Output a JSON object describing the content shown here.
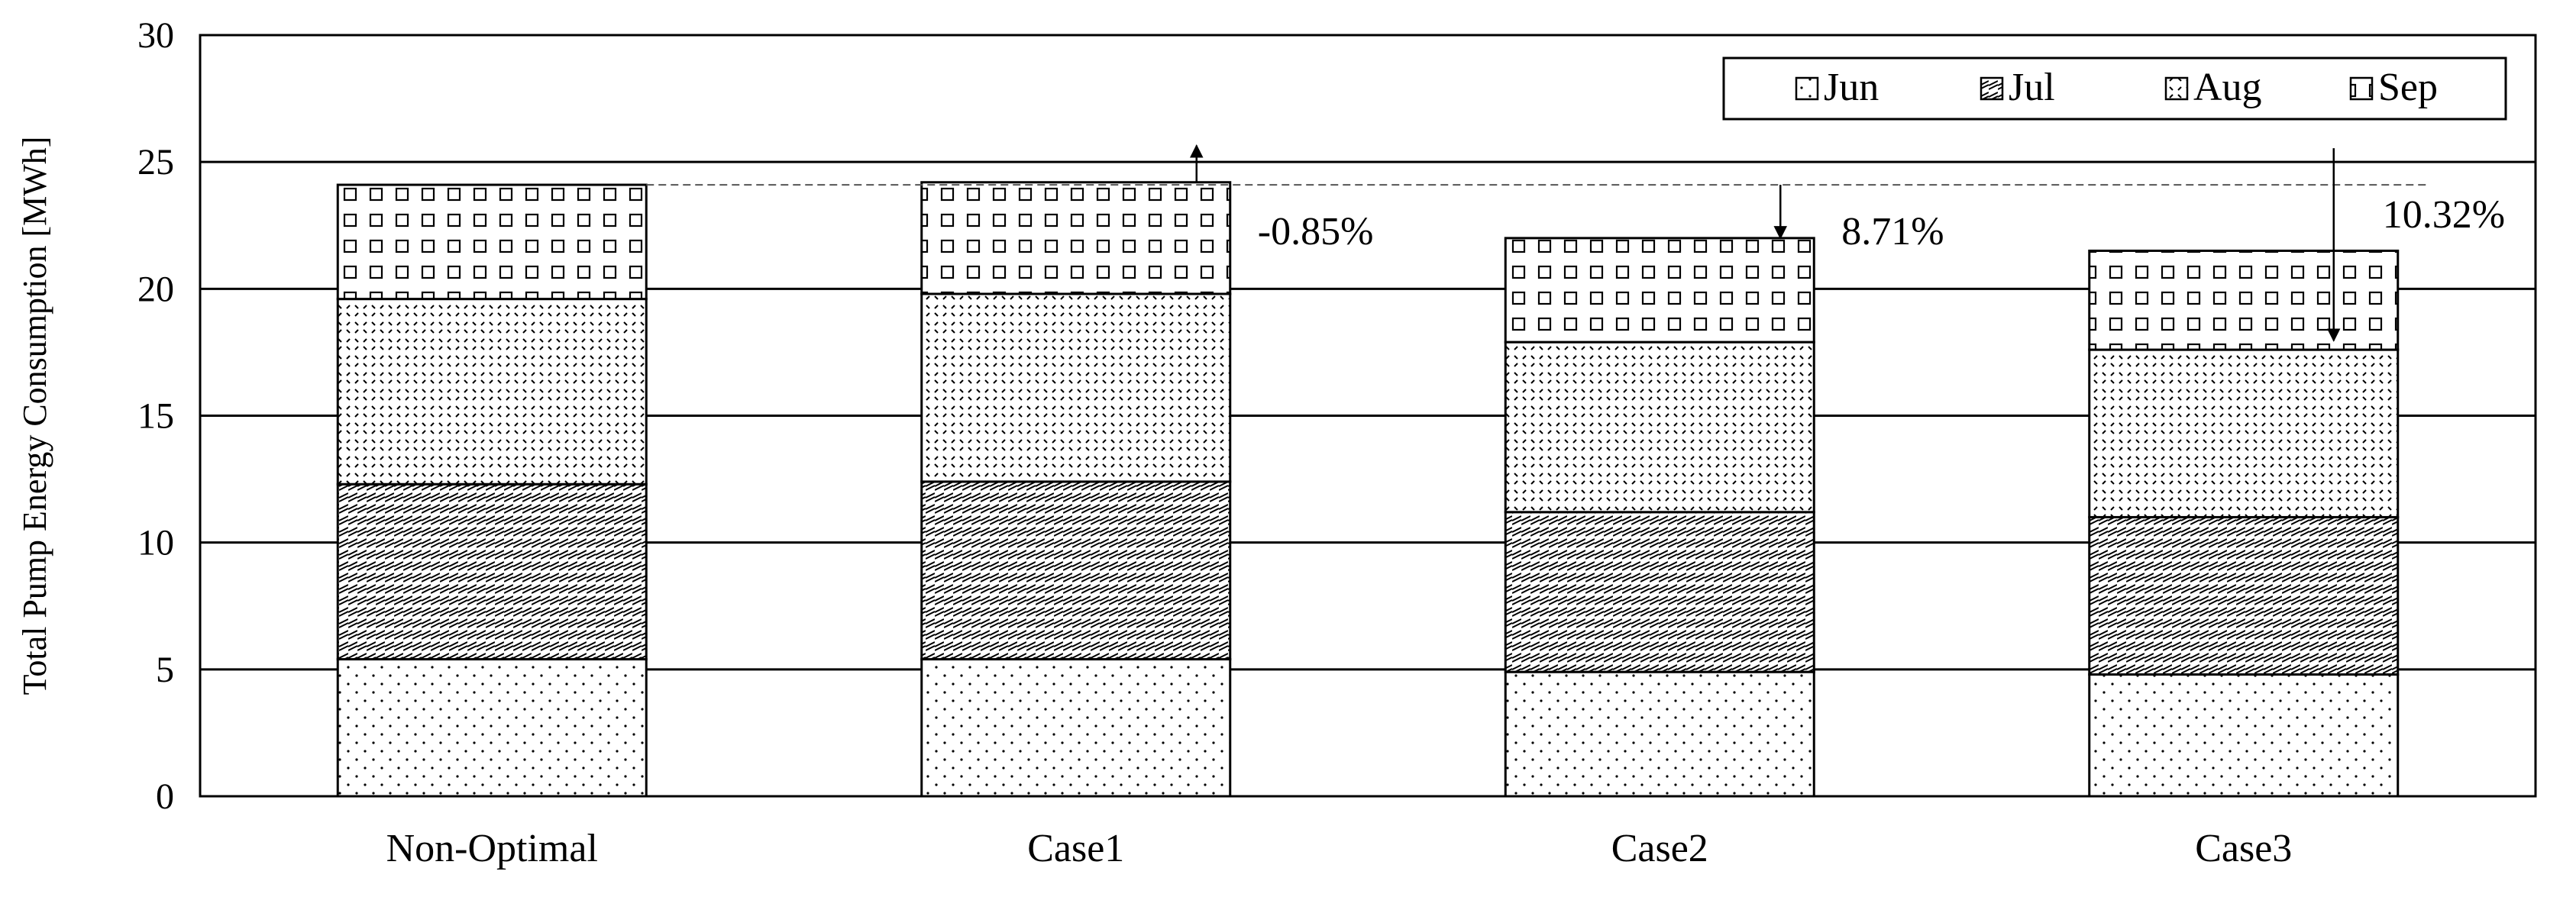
{
  "chart_data": {
    "type": "bar",
    "stacked": true,
    "title": "",
    "xlabel": "",
    "ylabel": "Total Pump Energy Consumption [MWh]",
    "ylim": [
      0,
      30
    ],
    "yticks": [
      0,
      5,
      10,
      15,
      20,
      25,
      30
    ],
    "grid": true,
    "legend_position": "top-right",
    "categories": [
      "Non-Optimal",
      "Case1",
      "Case2",
      "Case3"
    ],
    "series": [
      {
        "name": "Jun",
        "values": [
          5.4,
          5.4,
          4.9,
          4.8
        ]
      },
      {
        "name": "Jul",
        "values": [
          6.9,
          7.0,
          6.3,
          6.2
        ]
      },
      {
        "name": "Aug",
        "values": [
          7.3,
          7.4,
          6.7,
          6.6
        ]
      },
      {
        "name": "Sep",
        "values": [
          4.5,
          4.4,
          4.1,
          3.9
        ]
      }
    ],
    "annotations": [
      {
        "category": "Case1",
        "text": "-0.85%"
      },
      {
        "category": "Case2",
        "text": "8.71%"
      },
      {
        "category": "Case3",
        "text": "10.32%"
      }
    ]
  }
}
